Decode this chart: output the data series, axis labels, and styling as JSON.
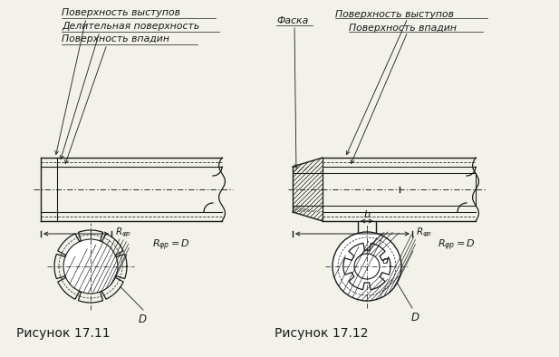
{
  "bg_color": "#f2f1ea",
  "lc": "#1a1a1a",
  "fig1_label": "Рисунок 17.11",
  "fig2_label": "Рисунок 17.12",
  "txt_vystupov": "Поверхность выступов",
  "txt_delitelnaya": "Делительная поверхность",
  "txt_vpadin": "Поверхность впадин",
  "txt_faska": "Фаска"
}
